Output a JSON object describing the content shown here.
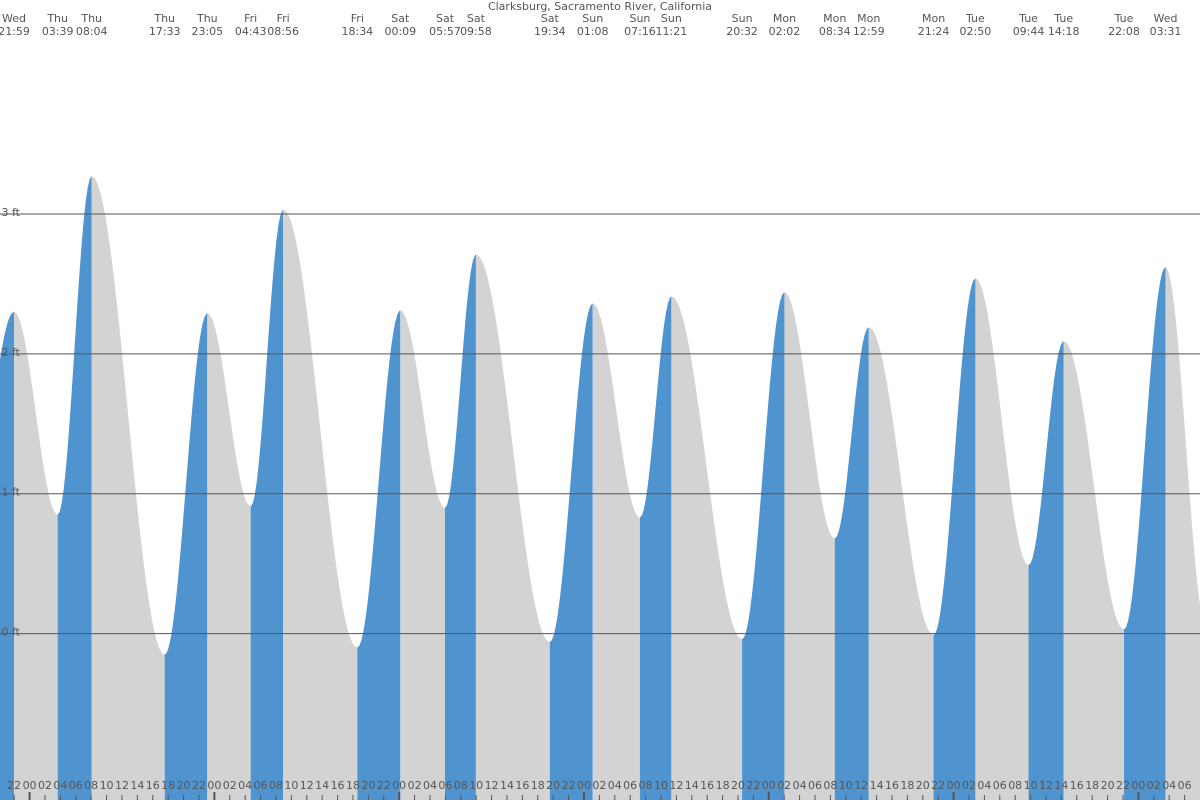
{
  "chart_data": {
    "type": "tide",
    "title": "Clarksburg, Sacramento River, California",
    "rise_color": "#5094cf",
    "fall_color": "#d3d3d3",
    "grid": true,
    "ylim": [
      -1.19,
      4.53
    ],
    "yticks": [
      {
        "value": 0,
        "label": "0 ft"
      },
      {
        "value": 1,
        "label": "1 ft"
      },
      {
        "value": 2,
        "label": "2 ft"
      },
      {
        "value": 3,
        "label": "3 ft"
      }
    ],
    "xlim": [
      20.16,
      176
    ],
    "xticks": [
      {
        "value": 22,
        "label": "22"
      },
      {
        "value": 24,
        "label": "00"
      },
      {
        "value": 26,
        "label": "02"
      },
      {
        "value": 28,
        "label": "04"
      },
      {
        "value": 30,
        "label": "06"
      },
      {
        "value": 32,
        "label": "08"
      },
      {
        "value": 34,
        "label": "10"
      },
      {
        "value": 36,
        "label": "12"
      },
      {
        "value": 38,
        "label": "14"
      },
      {
        "value": 40,
        "label": "16"
      },
      {
        "value": 42,
        "label": "18"
      },
      {
        "value": 44,
        "label": "20"
      },
      {
        "value": 46,
        "label": "22"
      },
      {
        "value": 48,
        "label": "00"
      },
      {
        "value": 50,
        "label": "02"
      },
      {
        "value": 52,
        "label": "04"
      },
      {
        "value": 54,
        "label": "06"
      },
      {
        "value": 56,
        "label": "08"
      },
      {
        "value": 58,
        "label": "10"
      },
      {
        "value": 60,
        "label": "12"
      },
      {
        "value": 62,
        "label": "14"
      },
      {
        "value": 64,
        "label": "16"
      },
      {
        "value": 66,
        "label": "18"
      },
      {
        "value": 68,
        "label": "20"
      },
      {
        "value": 70,
        "label": "22"
      },
      {
        "value": 72,
        "label": "00"
      },
      {
        "value": 74,
        "label": "02"
      },
      {
        "value": 76,
        "label": "04"
      },
      {
        "value": 78,
        "label": "06"
      },
      {
        "value": 80,
        "label": "08"
      },
      {
        "value": 82,
        "label": "10"
      },
      {
        "value": 84,
        "label": "12"
      },
      {
        "value": 86,
        "label": "14"
      },
      {
        "value": 88,
        "label": "16"
      },
      {
        "value": 90,
        "label": "18"
      },
      {
        "value": 92,
        "label": "20"
      },
      {
        "value": 94,
        "label": "22"
      },
      {
        "value": 96,
        "label": "00"
      },
      {
        "value": 98,
        "label": "02"
      },
      {
        "value": 100,
        "label": "04"
      },
      {
        "value": 102,
        "label": "06"
      },
      {
        "value": 104,
        "label": "08"
      },
      {
        "value": 106,
        "label": "10"
      },
      {
        "value": 108,
        "label": "12"
      },
      {
        "value": 110,
        "label": "14"
      },
      {
        "value": 112,
        "label": "16"
      },
      {
        "value": 114,
        "label": "18"
      },
      {
        "value": 116,
        "label": "20"
      },
      {
        "value": 118,
        "label": "22"
      },
      {
        "value": 120,
        "label": "00"
      },
      {
        "value": 122,
        "label": "02"
      },
      {
        "value": 124,
        "label": "04"
      },
      {
        "value": 126,
        "label": "06"
      },
      {
        "value": 128,
        "label": "08"
      },
      {
        "value": 130,
        "label": "10"
      },
      {
        "value": 132,
        "label": "12"
      },
      {
        "value": 134,
        "label": "14"
      },
      {
        "value": 136,
        "label": "16"
      },
      {
        "value": 138,
        "label": "18"
      },
      {
        "value": 140,
        "label": "20"
      },
      {
        "value": 142,
        "label": "22"
      },
      {
        "value": 144,
        "label": "00"
      },
      {
        "value": 146,
        "label": "02"
      },
      {
        "value": 148,
        "label": "04"
      },
      {
        "value": 150,
        "label": "06"
      },
      {
        "value": 152,
        "label": "08"
      },
      {
        "value": 154,
        "label": "10"
      },
      {
        "value": 156,
        "label": "12"
      },
      {
        "value": 158,
        "label": "14"
      },
      {
        "value": 160,
        "label": "16"
      },
      {
        "value": 162,
        "label": "18"
      },
      {
        "value": 164,
        "label": "20"
      },
      {
        "value": 166,
        "label": "22"
      },
      {
        "value": 168,
        "label": "00"
      },
      {
        "value": 170,
        "label": "02"
      },
      {
        "value": 172,
        "label": "04"
      },
      {
        "value": 174,
        "label": "06"
      }
    ],
    "events": [
      {
        "day": "Wed",
        "time": "21:59",
        "height": 2.3
      },
      {
        "day": "Thu",
        "time": "03:39",
        "height": 0.85
      },
      {
        "day": "Thu",
        "time": "08:04",
        "height": 3.27
      },
      {
        "day": "Thu",
        "time": "17:33",
        "height": -0.15
      },
      {
        "day": "Thu",
        "time": "23:05",
        "height": 2.29
      },
      {
        "day": "Fri",
        "time": "04:43",
        "height": 0.91
      },
      {
        "day": "Fri",
        "time": "08:56",
        "height": 3.03
      },
      {
        "day": "Fri",
        "time": "18:34",
        "height": -0.1
      },
      {
        "day": "Sat",
        "time": "00:09",
        "height": 2.31
      },
      {
        "day": "Sat",
        "time": "05:57",
        "height": 0.9
      },
      {
        "day": "Sat",
        "time": "09:58",
        "height": 2.71
      },
      {
        "day": "Sat",
        "time": "19:34",
        "height": -0.06
      },
      {
        "day": "Sun",
        "time": "01:08",
        "height": 2.36
      },
      {
        "day": "Sun",
        "time": "07:16",
        "height": 0.83
      },
      {
        "day": "Sun",
        "time": "11:21",
        "height": 2.41
      },
      {
        "day": "Sun",
        "time": "20:32",
        "height": -0.04
      },
      {
        "day": "Mon",
        "time": "02:02",
        "height": 2.44
      },
      {
        "day": "Mon",
        "time": "08:34",
        "height": 0.68
      },
      {
        "day": "Mon",
        "time": "12:59",
        "height": 2.19
      },
      {
        "day": "Mon",
        "time": "21:24",
        "height": -0.01
      },
      {
        "day": "Tue",
        "time": "02:50",
        "height": 2.54
      },
      {
        "day": "Tue",
        "time": "09:44",
        "height": 0.49
      },
      {
        "day": "Tue",
        "time": "14:18",
        "height": 2.09
      },
      {
        "day": "Tue",
        "time": "22:08",
        "height": 0.03
      },
      {
        "day": "Wed",
        "time": "03:31",
        "height": 2.62
      }
    ]
  }
}
